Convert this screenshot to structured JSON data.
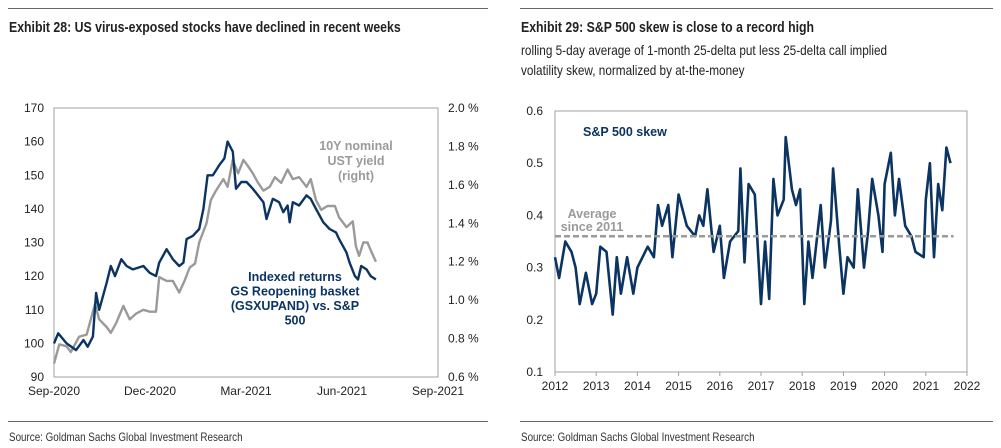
{
  "left": {
    "title": "Exhibit 28: US virus-exposed stocks have declined in recent weeks",
    "source": "Source: Goldman Sachs Global Investment Research"
  },
  "right": {
    "title": "Exhibit 29: S&P 500 skew is close to a record high",
    "subtitle_lines": [
      "rolling 5-day average of 1-month 25-delta put less 25-delta call implied",
      "volatility skew, normalized by at-the-money"
    ],
    "source": "Source: Goldman Sachs Global Investment Research"
  },
  "colors": {
    "navy": "#0b3462",
    "gray": "#9a9a9a",
    "frame": "#a0a0a0"
  },
  "chart_data": [
    {
      "type": "line",
      "title": "Exhibit 28: US virus-exposed stocks have declined in recent weeks",
      "xlim": [
        "2020-09-01",
        "2021-09-01"
      ],
      "x_ticks": [
        "Sep-2020",
        "Dec-2020",
        "Mar-2021",
        "Jun-2021",
        "Sep-2021"
      ],
      "ylim_left": [
        90,
        170
      ],
      "y_ticks_left": [
        "90",
        "100",
        "110",
        "120",
        "130",
        "140",
        "150",
        "160",
        "170"
      ],
      "ylim_right": [
        0.6,
        2.0
      ],
      "y_ticks_right": [
        "0.6 %",
        "0.8 %",
        "1.0 %",
        "1.2 %",
        "1.4 %",
        "1.6 %",
        "1.8 %",
        "2.0 %"
      ],
      "grid": false,
      "annotations": [
        {
          "lines": [
            "10Y nominal",
            "UST yield",
            "(right)"
          ],
          "series": 1
        },
        {
          "lines": [
            "Indexed returns",
            "GS Reopening basket",
            "(GSXUPAND) vs. S&P",
            "500"
          ],
          "series": 0
        }
      ],
      "series": [
        {
          "axis": "left",
          "color": "#0b3462",
          "x": [
            "2020-09-01",
            "2020-09-05",
            "2020-09-13",
            "2020-09-22",
            "2020-09-29",
            "2020-10-03",
            "2020-10-08",
            "2020-10-11",
            "2020-10-14",
            "2020-10-21",
            "2020-10-25",
            "2020-10-29",
            "2020-11-04",
            "2020-11-09",
            "2020-11-15",
            "2020-11-25",
            "2020-12-01",
            "2020-12-07",
            "2020-12-10",
            "2020-12-17",
            "2020-12-23",
            "2020-12-29",
            "2021-01-02",
            "2021-01-05",
            "2021-01-11",
            "2021-01-17",
            "2021-01-21",
            "2021-01-25",
            "2021-01-30",
            "2021-02-05",
            "2021-02-10",
            "2021-02-13",
            "2021-02-18",
            "2021-02-21",
            "2021-02-26",
            "2021-03-03",
            "2021-03-09",
            "2021-03-19",
            "2021-03-22",
            "2021-03-28",
            "2021-04-03",
            "2021-04-07",
            "2021-04-11",
            "2021-04-13",
            "2021-04-16",
            "2021-04-22",
            "2021-04-29",
            "2021-05-03",
            "2021-05-08",
            "2021-05-15",
            "2021-05-21",
            "2021-05-27",
            "2021-05-30",
            "2021-06-06",
            "2021-06-09",
            "2021-06-14",
            "2021-06-17",
            "2021-06-20",
            "2021-06-25",
            "2021-06-29",
            "2021-07-04"
          ],
          "y": [
            100,
            103,
            100,
            98,
            101,
            99,
            102,
            115,
            110,
            118,
            123,
            120,
            125,
            123,
            122,
            123,
            121,
            120,
            124,
            128,
            125,
            123,
            124,
            131,
            132,
            134,
            140,
            150,
            150,
            153,
            155,
            160,
            157,
            146,
            148,
            148,
            146,
            142,
            137,
            143,
            142,
            139,
            141,
            136,
            142,
            141,
            144,
            143,
            140,
            136,
            134,
            133,
            131,
            127,
            124,
            120,
            119,
            123,
            122,
            120,
            119
          ]
        },
        {
          "axis": "right",
          "color": "#9a9a9a",
          "x": [
            "2020-09-01",
            "2020-09-06",
            "2020-09-13",
            "2020-09-17",
            "2020-09-25",
            "2020-10-02",
            "2020-10-06",
            "2020-10-10",
            "2020-10-14",
            "2020-10-21",
            "2020-10-25",
            "2020-10-30",
            "2020-11-06",
            "2020-11-12",
            "2020-11-18",
            "2020-11-25",
            "2020-12-01",
            "2020-12-07",
            "2020-12-10",
            "2020-12-17",
            "2020-12-23",
            "2020-12-29",
            "2021-01-03",
            "2021-01-08",
            "2021-01-13",
            "2021-01-17",
            "2021-01-24",
            "2021-01-28",
            "2021-02-02",
            "2021-02-09",
            "2021-02-13",
            "2021-02-18",
            "2021-02-23",
            "2021-02-28",
            "2021-03-04",
            "2021-03-09",
            "2021-03-14",
            "2021-03-19",
            "2021-03-25",
            "2021-03-30",
            "2021-04-05",
            "2021-04-11",
            "2021-04-16",
            "2021-04-22",
            "2021-04-29",
            "2021-05-03",
            "2021-05-08",
            "2021-05-13",
            "2021-05-19",
            "2021-05-26",
            "2021-05-30",
            "2021-06-06",
            "2021-06-12",
            "2021-06-15",
            "2021-06-18",
            "2021-06-22",
            "2021-06-26",
            "2021-06-29",
            "2021-07-04"
          ],
          "y": [
            0.67,
            0.77,
            0.76,
            0.73,
            0.81,
            0.82,
            0.9,
            0.98,
            0.9,
            0.86,
            0.83,
            0.88,
            0.97,
            0.9,
            0.93,
            0.95,
            0.94,
            0.94,
            1.12,
            1.1,
            1.1,
            1.04,
            1.1,
            1.17,
            1.19,
            1.3,
            1.4,
            1.52,
            1.57,
            1.63,
            1.59,
            1.73,
            1.66,
            1.73,
            1.7,
            1.66,
            1.61,
            1.57,
            1.59,
            1.64,
            1.61,
            1.68,
            1.63,
            1.64,
            1.59,
            1.63,
            1.52,
            1.47,
            1.49,
            1.49,
            1.43,
            1.38,
            1.41,
            1.28,
            1.23,
            1.3,
            1.3,
            1.26,
            1.2
          ]
        }
      ]
    },
    {
      "type": "line",
      "title": "Exhibit 29: S&P 500 skew is close to a record high",
      "xlim": [
        2012,
        2022
      ],
      "x_ticks": [
        "2012",
        "2013",
        "2014",
        "2015",
        "2016",
        "2017",
        "2018",
        "2019",
        "2020",
        "2021",
        "2022"
      ],
      "ylim": [
        0.1,
        0.6
      ],
      "y_ticks": [
        "0.1",
        "0.2",
        "0.3",
        "0.4",
        "0.5",
        "0.6"
      ],
      "grid": false,
      "reference_line": {
        "value": 0.36,
        "label_lines": [
          "Average",
          "since 2011"
        ],
        "color": "#9a9a9a",
        "style": "dashed"
      },
      "series": [
        {
          "name": "S&P 500 skew",
          "color": "#0b3462",
          "x": [
            2012.0,
            2012.1,
            2012.25,
            2012.4,
            2012.5,
            2012.6,
            2012.75,
            2012.9,
            2013.0,
            2013.1,
            2013.25,
            2013.4,
            2013.5,
            2013.6,
            2013.75,
            2013.9,
            2014.0,
            2014.25,
            2014.4,
            2014.5,
            2014.6,
            2014.75,
            2014.85,
            2015.0,
            2015.2,
            2015.4,
            2015.5,
            2015.6,
            2015.7,
            2015.85,
            2016.0,
            2016.1,
            2016.25,
            2016.45,
            2016.5,
            2016.6,
            2016.7,
            2016.85,
            2017.0,
            2017.1,
            2017.2,
            2017.3,
            2017.4,
            2017.55,
            2017.6,
            2017.75,
            2017.85,
            2017.95,
            2018.05,
            2018.15,
            2018.25,
            2018.45,
            2018.55,
            2018.7,
            2018.75,
            2018.9,
            2019.0,
            2019.1,
            2019.25,
            2019.35,
            2019.5,
            2019.6,
            2019.7,
            2019.85,
            2019.95,
            2020.0,
            2020.15,
            2020.25,
            2020.35,
            2020.5,
            2020.65,
            2020.75,
            2020.95,
            2021.0,
            2021.1,
            2021.2,
            2021.3,
            2021.4,
            2021.5,
            2021.6
          ],
          "y": [
            0.32,
            0.28,
            0.35,
            0.33,
            0.3,
            0.23,
            0.29,
            0.23,
            0.25,
            0.34,
            0.33,
            0.21,
            0.32,
            0.25,
            0.32,
            0.25,
            0.3,
            0.34,
            0.32,
            0.42,
            0.38,
            0.42,
            0.32,
            0.44,
            0.38,
            0.36,
            0.4,
            0.38,
            0.45,
            0.33,
            0.38,
            0.28,
            0.35,
            0.37,
            0.49,
            0.31,
            0.46,
            0.44,
            0.23,
            0.35,
            0.24,
            0.47,
            0.4,
            0.43,
            0.55,
            0.45,
            0.42,
            0.45,
            0.23,
            0.35,
            0.28,
            0.42,
            0.3,
            0.39,
            0.49,
            0.34,
            0.25,
            0.32,
            0.3,
            0.45,
            0.3,
            0.37,
            0.47,
            0.4,
            0.33,
            0.46,
            0.52,
            0.4,
            0.47,
            0.38,
            0.36,
            0.33,
            0.32,
            0.43,
            0.5,
            0.32,
            0.46,
            0.41,
            0.53,
            0.5
          ]
        }
      ]
    }
  ]
}
